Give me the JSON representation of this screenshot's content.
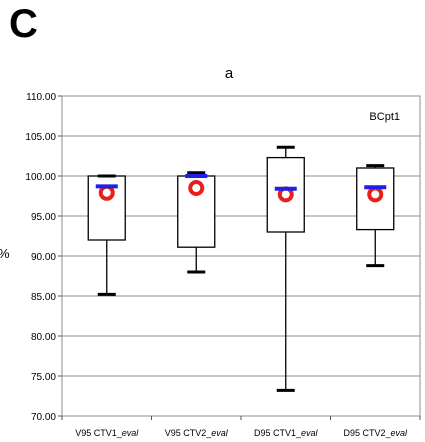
{
  "panel_label": "C",
  "chart_data": {
    "type": "box",
    "title": "a",
    "annotation": "BCpt1",
    "ylabel": "%",
    "xlabel": "",
    "ylim": [
      70,
      110
    ],
    "yticks": [
      "70.00",
      "75.00",
      "80.00",
      "85.00",
      "90.00",
      "95.00",
      "100.00",
      "105.00",
      "110.00"
    ],
    "grid": true,
    "categories": [
      {
        "name": "V95 CTV1",
        "suffix": "eval"
      },
      {
        "name": "V95 CTV2",
        "suffix": "eval"
      },
      {
        "name": "D95 CTV1",
        "suffix": "eval"
      },
      {
        "name": "D95 CTV2",
        "suffix": "eval"
      }
    ],
    "boxes": [
      {
        "whisker_low": 85.2,
        "q1": 92.0,
        "q3": 100.0,
        "whisker_high": 100.0,
        "mean": 98.7,
        "median": 97.9
      },
      {
        "whisker_low": 88.0,
        "q1": 91.1,
        "q3": 100.0,
        "whisker_high": 100.4,
        "mean": 100.0,
        "median": 98.5
      },
      {
        "whisker_low": 73.2,
        "q1": 93.0,
        "q3": 102.3,
        "whisker_high": 103.6,
        "mean": 98.4,
        "median": 97.7
      },
      {
        "whisker_low": 88.8,
        "q1": 93.3,
        "q3": 101.0,
        "whisker_high": 101.3,
        "mean": 98.6,
        "median": 97.7
      }
    ],
    "colors": {
      "mean_marker": "#1f1fe6",
      "median_marker": "#e8201a",
      "box": "#000000",
      "grid": "#8c8c8c"
    }
  }
}
